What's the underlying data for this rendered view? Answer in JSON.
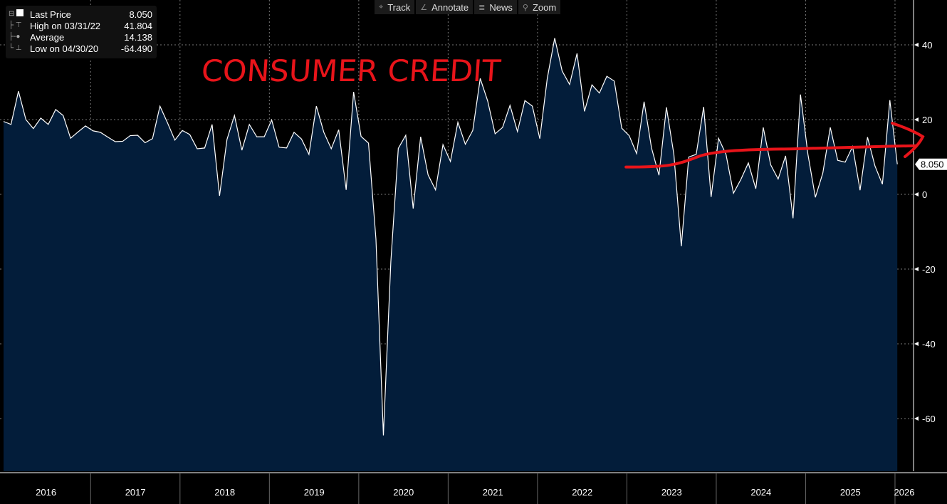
{
  "legend": {
    "last_label": "Last Price",
    "last_value": "8.050",
    "high_label": "High on 03/31/22",
    "high_value": "41.804",
    "avg_label": "Average",
    "avg_value": "14.138",
    "low_label": "Low on 04/30/20",
    "low_value": "-64.490"
  },
  "toolbar": {
    "track": "Track",
    "annotate": "Annotate",
    "news": "News",
    "zoom": "Zoom"
  },
  "annotation": {
    "text": "CONSUMER CREDIT",
    "color": "#e8141a"
  },
  "colors": {
    "fill": "#031d3a",
    "line": "#ffffff",
    "background": "#000000"
  },
  "chart_data": {
    "type": "area",
    "title": "",
    "frequency": "monthly",
    "start": "2016-01",
    "last_value_label": "8.050",
    "y_ticks": [
      40,
      20,
      0,
      -20,
      -40,
      -60
    ],
    "ylim": [
      -74,
      50
    ],
    "x_tick_labels": [
      "2016",
      "2017",
      "2018",
      "2019",
      "2020",
      "2021",
      "2022",
      "2023",
      "2024",
      "2025",
      "2026"
    ],
    "values": [
      19.5,
      18.7,
      27.6,
      20,
      17.6,
      20.4,
      18.7,
      22.7,
      21.1,
      15,
      16.7,
      18.3,
      17,
      16.6,
      15.3,
      14.1,
      14.2,
      15.7,
      15.8,
      13.8,
      14.9,
      23.6,
      19.2,
      14.5,
      17.1,
      16,
      12.2,
      12.4,
      18.7,
      -0.4,
      14.7,
      21.1,
      11.8,
      18.7,
      15.4,
      15.4,
      19.9,
      12.6,
      12.4,
      16.6,
      14.8,
      10.7,
      23.6,
      16.6,
      12.2,
      17.3,
      1.2,
      27.4,
      15.5,
      13.7,
      -12,
      -64.49,
      -18,
      12.3,
      15.8,
      -3.8,
      15.4,
      5.2,
      1.2,
      13.3,
      8.8,
      19.3,
      13.4,
      17.1,
      31,
      25,
      16.2,
      17.9,
      23.8,
      16.8,
      25.1,
      23.6,
      14.9,
      31,
      41.804,
      33,
      29.4,
      37.7,
      22.2,
      29.3,
      27.1,
      31.6,
      30.3,
      17.7,
      15.7,
      10.9,
      24.8,
      12.4,
      5.1,
      23.3,
      10.7,
      -13.9,
      10,
      10.7,
      23.4,
      -0.7,
      15,
      10.7,
      0.3,
      4,
      8.4,
      1.5,
      17.9,
      7.9,
      4.1,
      10.3,
      -6.4,
      26.7,
      10.7,
      -0.8,
      5.7,
      17.9,
      9.1,
      8.6,
      12.8,
      1.1,
      15.3,
      7.6,
      2.7,
      25.2,
      8.05
    ],
    "trend_annotation": {
      "start_index": 83,
      "end_index": 120,
      "start_value": 7.3,
      "end_value": 13
    }
  }
}
